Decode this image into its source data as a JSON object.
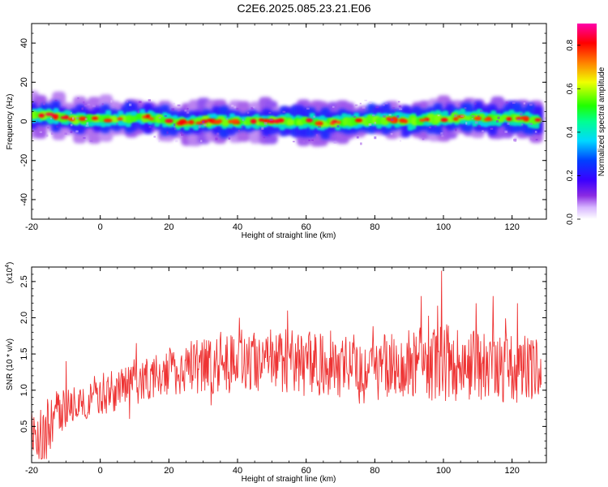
{
  "title": "C2E6.2025.085.23.21.E06",
  "chart_data": [
    {
      "type": "heatmap",
      "xlabel": "Height of straight line (km)",
      "ylabel": "Frequency (Hz)",
      "xlim": [
        -20,
        130
      ],
      "ylim": [
        -50,
        50
      ],
      "xticks": [
        -20,
        0,
        20,
        40,
        60,
        80,
        100,
        120
      ],
      "xtick_labels": [
        "-20",
        "0",
        "20",
        "40",
        "60",
        "80",
        "100",
        "120"
      ],
      "yticks": [
        -40,
        -20,
        0,
        20,
        40
      ],
      "ytick_labels": [
        "-40",
        "-20",
        "0",
        "20",
        "40"
      ],
      "colorbar": {
        "label": "Normalized spectral amplitude",
        "range": [
          0.0,
          0.9
        ],
        "ticks": [
          0.0,
          0.2,
          0.4,
          0.6,
          0.8
        ],
        "tick_labels": [
          "0.0",
          "0.2",
          "0.4",
          "0.6",
          "0.8"
        ],
        "colormap": "rainbow (purple-blue-cyan-green-yellow-red-magenta)"
      },
      "ridge": {
        "x": [
          -20,
          -15,
          -10,
          -5,
          0,
          5,
          10,
          15,
          20,
          25,
          30,
          35,
          40,
          45,
          50,
          55,
          60,
          65,
          70,
          75,
          80,
          85,
          90,
          95,
          100,
          105,
          110,
          115,
          120,
          125,
          128
        ],
        "freq_center": [
          3,
          3,
          2,
          1,
          1,
          1,
          2,
          2,
          0,
          -1,
          0,
          0,
          0,
          0,
          0,
          0,
          0,
          -1,
          0,
          0,
          1,
          1,
          0,
          1,
          1,
          2,
          2,
          1,
          2,
          1,
          0
        ],
        "peak_amplitude": [
          0.7,
          0.85,
          0.8,
          0.85,
          0.8,
          0.85,
          0.8,
          0.75,
          0.85,
          0.8,
          0.8,
          0.85,
          0.8,
          0.8,
          0.85,
          0.8,
          0.85,
          0.8,
          0.8,
          0.85,
          0.8,
          0.85,
          0.8,
          0.8,
          0.85,
          0.8,
          0.8,
          0.85,
          0.8,
          0.8,
          0.85
        ],
        "band_halfwidth_hz": 6
      }
    },
    {
      "type": "line",
      "xlabel": "Height of straight line (km)",
      "ylabel": "SNR (10 * v/v)",
      "y_multiplier_label": "(x10",
      "y_multiplier_exp": "4",
      "y_multiplier_close": ")",
      "xlim": [
        -20,
        130
      ],
      "ylim": [
        0.0,
        2.7
      ],
      "xticks": [
        -20,
        0,
        20,
        40,
        60,
        80,
        100,
        120
      ],
      "xtick_labels": [
        "-20",
        "0",
        "20",
        "40",
        "60",
        "80",
        "100",
        "120"
      ],
      "yticks": [
        0.5,
        1.0,
        1.5,
        2.0,
        2.5
      ],
      "ytick_labels": [
        "0.5",
        "1.0",
        "1.5",
        "2.0",
        "2.5"
      ],
      "line_color": "#ee3333",
      "x": [
        -20,
        -18,
        -16,
        -14,
        -12,
        -10,
        -8,
        -6,
        -4,
        -2,
        0,
        2,
        4,
        6,
        8,
        10,
        12,
        14,
        16,
        18,
        20,
        25,
        30,
        35,
        40,
        45,
        50,
        55,
        60,
        65,
        70,
        75,
        80,
        85,
        90,
        95,
        100,
        105,
        110,
        115,
        120,
        125,
        128
      ],
      "mean": [
        0.45,
        0.35,
        0.3,
        0.6,
        0.7,
        0.75,
        0.8,
        0.85,
        0.85,
        0.9,
        0.95,
        0.95,
        1.0,
        1.0,
        1.05,
        1.1,
        1.1,
        1.15,
        1.2,
        1.2,
        1.25,
        1.3,
        1.35,
        1.35,
        1.4,
        1.4,
        1.4,
        1.4,
        1.35,
        1.4,
        1.35,
        1.35,
        1.3,
        1.35,
        1.35,
        1.35,
        1.4,
        1.35,
        1.35,
        1.35,
        1.3,
        1.3,
        1.3
      ],
      "spread": [
        0.35,
        0.4,
        0.4,
        0.4,
        0.3,
        0.3,
        0.25,
        0.25,
        0.25,
        0.3,
        0.3,
        0.3,
        0.3,
        0.3,
        0.3,
        0.35,
        0.3,
        0.3,
        0.3,
        0.3,
        0.35,
        0.35,
        0.4,
        0.4,
        0.45,
        0.4,
        0.45,
        0.45,
        0.45,
        0.45,
        0.45,
        0.45,
        0.45,
        0.45,
        0.5,
        0.5,
        0.55,
        0.5,
        0.5,
        0.5,
        0.5,
        0.45,
        0.4
      ],
      "spikes": [
        {
          "x": -10,
          "y": 1.4
        },
        {
          "x": 10.5,
          "y": 1.65
        },
        {
          "x": 40.5,
          "y": 2.0
        },
        {
          "x": 54.5,
          "y": 2.1
        },
        {
          "x": 93.5,
          "y": 2.3
        },
        {
          "x": 99.5,
          "y": 2.65
        },
        {
          "x": 109.5,
          "y": 2.2
        },
        {
          "x": 114.5,
          "y": 2.3
        },
        {
          "x": 121.5,
          "y": 2.2
        }
      ]
    }
  ]
}
